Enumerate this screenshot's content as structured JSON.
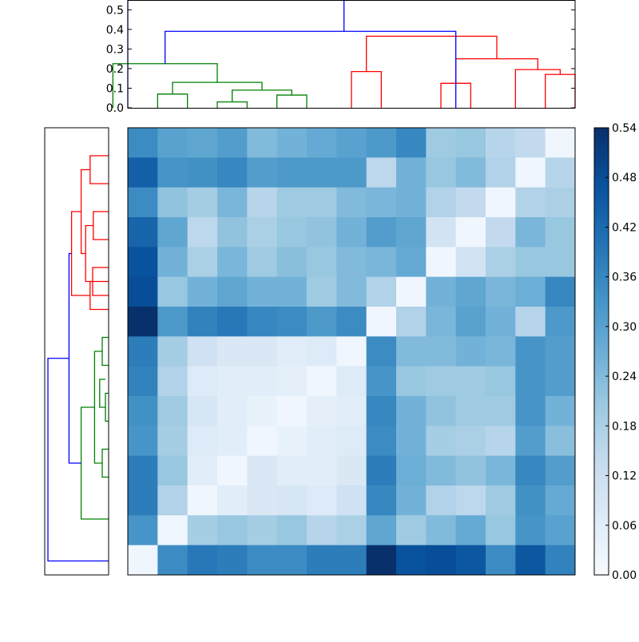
{
  "chart_data": [
    {
      "type": "dendrogram",
      "orientation": "top",
      "ylim": [
        0,
        0.55
      ],
      "yticks": [
        "0.0",
        "0.1",
        "0.2",
        "0.3",
        "0.4",
        "0.5"
      ],
      "ytick_values": [
        0,
        0.1,
        0.2,
        0.3,
        0.4,
        0.5
      ],
      "leaf_count": 15,
      "links": [
        {
          "x": [
            0.5,
            1.5
          ],
          "h": [
            0,
            0.07,
            0.07,
            0
          ],
          "color": "#008000"
        },
        {
          "x": [
            2.5,
            3.5
          ],
          "h": [
            0,
            0.03,
            0.03,
            0
          ],
          "color": "#008000"
        },
        {
          "x": [
            4.5,
            5.5
          ],
          "h": [
            0,
            0.065,
            0.065,
            0
          ],
          "color": "#008000"
        },
        {
          "x": [
            3.0,
            5.0
          ],
          "h": [
            0.03,
            0.09,
            0.09,
            0.065
          ],
          "color": "#008000"
        },
        {
          "x": [
            1.0,
            4.0
          ],
          "h": [
            0.07,
            0.13,
            0.13,
            0.09
          ],
          "color": "#008000"
        },
        {
          "x": [
            -1.0,
            2.5
          ],
          "h": [
            0,
            0.225,
            0.225,
            0.13
          ],
          "color": "#008000"
        },
        {
          "x": [
            7.0,
            8.0
          ],
          "h": [
            0,
            0.185,
            0.185,
            0
          ],
          "color": "#ff0000"
        },
        {
          "x": [
            10.0,
            11.0
          ],
          "h": [
            0,
            0.125,
            0.125,
            0
          ],
          "color": "#ff0000"
        },
        {
          "x": [
            13.5,
            14.5
          ],
          "h": [
            0,
            0.17,
            0.17,
            0
          ],
          "color": "#ff0000"
        },
        {
          "x": [
            12.5,
            14.0
          ],
          "h": [
            0,
            0.195,
            0.195,
            0.17
          ],
          "color": "#ff0000"
        },
        {
          "x": [
            10.5,
            13.25
          ],
          "h": [
            0.125,
            0.25,
            0.25,
            0.195
          ],
          "color": "#ff0000"
        },
        {
          "x": [
            7.5,
            11.875
          ],
          "h": [
            0.185,
            0.365,
            0.365,
            0.25
          ],
          "color": "#ff0000"
        },
        {
          "x": [
            0.75,
            10.5
          ],
          "h": [
            0.225,
            0.39,
            0.39,
            0
          ],
          "color": "#0000ff"
        },
        {
          "x": [
            -0.5,
            6.75
          ],
          "h": [
            0,
            0.55,
            0.55,
            0.39
          ],
          "color": "#0000ff"
        }
      ]
    },
    {
      "type": "dendrogram",
      "orientation": "left",
      "xlim": [
        0,
        0.55
      ],
      "leaf_count": 15,
      "links": [
        {
          "y": [
            0.5,
            1.5
          ],
          "h": [
            0,
            0.29,
            0.29,
            0
          ],
          "color": "#ff0000"
        },
        {
          "y": [
            2.5,
            3.5
          ],
          "h": [
            0,
            0.24,
            0.24,
            0
          ],
          "color": "#ff0000"
        },
        {
          "y": [
            4.5,
            5.5
          ],
          "h": [
            0,
            0.25,
            0.25,
            0
          ],
          "color": "#ff0000"
        },
        {
          "y": [
            3.0,
            5.0
          ],
          "h": [
            0.24,
            0.36,
            0.36,
            0.25
          ],
          "color": "#ff0000"
        },
        {
          "y": [
            1.0,
            4.0
          ],
          "h": [
            0.29,
            0.43,
            0.43,
            0.36
          ],
          "color": "#ff0000"
        },
        {
          "y": [
            5.0,
            6.0
          ],
          "h": [
            0,
            0.29,
            0.29,
            0
          ],
          "color": "#ff0000"
        },
        {
          "y": [
            2.5,
            5.5
          ],
          "h": [
            0.43,
            0.58,
            0.58,
            0.29
          ],
          "color": "#ff0000"
        },
        {
          "y": [
            7.0,
            8.0
          ],
          "h": [
            0,
            0.1,
            0.1,
            0
          ],
          "color": "#008000"
        },
        {
          "y": [
            9.0,
            10.0
          ],
          "h": [
            0,
            0.05,
            0.05,
            0
          ],
          "color": "#008000"
        },
        {
          "y": [
            8.5,
            9.5
          ],
          "h": [
            0.05,
            0.14,
            0.14,
            0.05
          ],
          "color": "#008000"
        },
        {
          "y": [
            11.0,
            12.0
          ],
          "h": [
            0,
            0.1,
            0.1,
            0
          ],
          "color": "#008000"
        },
        {
          "y": [
            7.5,
            11.5
          ],
          "h": [
            0.1,
            0.22,
            0.22,
            0.1
          ],
          "color": "#008000"
        },
        {
          "y": [
            9.5,
            13.5
          ],
          "h": [
            0.22,
            0.43,
            0.43,
            0
          ],
          "color": "#008000"
        },
        {
          "y": [
            4.0,
            11.5
          ],
          "h": [
            0.58,
            0.62,
            0.62,
            0.43
          ],
          "color": "#0000ff"
        },
        {
          "y": [
            7.75,
            15.0
          ],
          "h": [
            0.62,
            0.95,
            0.95,
            0
          ],
          "color": "#0000ff"
        }
      ]
    },
    {
      "type": "heatmap",
      "rows": 15,
      "cols": 15,
      "vmin": 0,
      "vmax": 0.54,
      "colormap": "Blues",
      "values": [
        [
          0.35,
          0.3,
          0.29,
          0.31,
          0.24,
          0.26,
          0.28,
          0.3,
          0.32,
          0.36,
          0.2,
          0.21,
          0.16,
          0.14,
          0.02
        ],
        [
          0.44,
          0.33,
          0.34,
          0.36,
          0.31,
          0.32,
          0.32,
          0.32,
          0.15,
          0.26,
          0.21,
          0.24,
          0.17,
          0.02,
          0.16
        ],
        [
          0.35,
          0.22,
          0.19,
          0.25,
          0.16,
          0.2,
          0.2,
          0.24,
          0.25,
          0.26,
          0.17,
          0.14,
          0.02,
          0.17,
          0.18
        ],
        [
          0.43,
          0.29,
          0.15,
          0.22,
          0.18,
          0.21,
          0.22,
          0.26,
          0.31,
          0.29,
          0.1,
          0.02,
          0.14,
          0.25,
          0.21
        ],
        [
          0.47,
          0.26,
          0.18,
          0.25,
          0.2,
          0.23,
          0.21,
          0.24,
          0.25,
          0.28,
          0.02,
          0.1,
          0.18,
          0.21,
          0.21
        ],
        [
          0.48,
          0.21,
          0.26,
          0.29,
          0.26,
          0.26,
          0.2,
          0.24,
          0.17,
          0.02,
          0.26,
          0.29,
          0.25,
          0.27,
          0.36
        ],
        [
          0.54,
          0.32,
          0.37,
          0.39,
          0.36,
          0.35,
          0.32,
          0.35,
          0.02,
          0.17,
          0.25,
          0.3,
          0.26,
          0.16,
          0.32
        ],
        [
          0.38,
          0.19,
          0.11,
          0.08,
          0.08,
          0.06,
          0.07,
          0.02,
          0.35,
          0.24,
          0.24,
          0.26,
          0.25,
          0.33,
          0.31
        ],
        [
          0.37,
          0.17,
          0.07,
          0.06,
          0.06,
          0.05,
          0.02,
          0.07,
          0.33,
          0.21,
          0.2,
          0.2,
          0.21,
          0.33,
          0.31
        ],
        [
          0.34,
          0.2,
          0.09,
          0.06,
          0.04,
          0.02,
          0.05,
          0.06,
          0.36,
          0.26,
          0.22,
          0.2,
          0.2,
          0.33,
          0.26
        ],
        [
          0.33,
          0.19,
          0.07,
          0.06,
          0.02,
          0.04,
          0.06,
          0.07,
          0.35,
          0.26,
          0.19,
          0.18,
          0.16,
          0.31,
          0.23
        ],
        [
          0.38,
          0.21,
          0.06,
          0.02,
          0.08,
          0.06,
          0.06,
          0.08,
          0.38,
          0.27,
          0.24,
          0.22,
          0.25,
          0.36,
          0.31
        ],
        [
          0.38,
          0.17,
          0.02,
          0.06,
          0.08,
          0.09,
          0.07,
          0.11,
          0.36,
          0.26,
          0.17,
          0.15,
          0.2,
          0.34,
          0.28
        ],
        [
          0.33,
          0.02,
          0.19,
          0.21,
          0.19,
          0.21,
          0.16,
          0.18,
          0.29,
          0.2,
          0.24,
          0.28,
          0.21,
          0.33,
          0.3
        ],
        [
          0.02,
          0.35,
          0.39,
          0.38,
          0.35,
          0.35,
          0.38,
          0.38,
          0.54,
          0.47,
          0.48,
          0.46,
          0.35,
          0.46,
          0.37
        ]
      ]
    },
    {
      "type": "colorbar",
      "vmin": 0,
      "vmax": 0.54,
      "tick_values": [
        0,
        0.06,
        0.12,
        0.18,
        0.24,
        0.3,
        0.36,
        0.42,
        0.48,
        0.54
      ],
      "tick_labels": [
        "0.00",
        "0.06",
        "0.12",
        "0.18",
        "0.24",
        "0.30",
        "0.36",
        "0.42",
        "0.48",
        "0.54"
      ]
    }
  ]
}
